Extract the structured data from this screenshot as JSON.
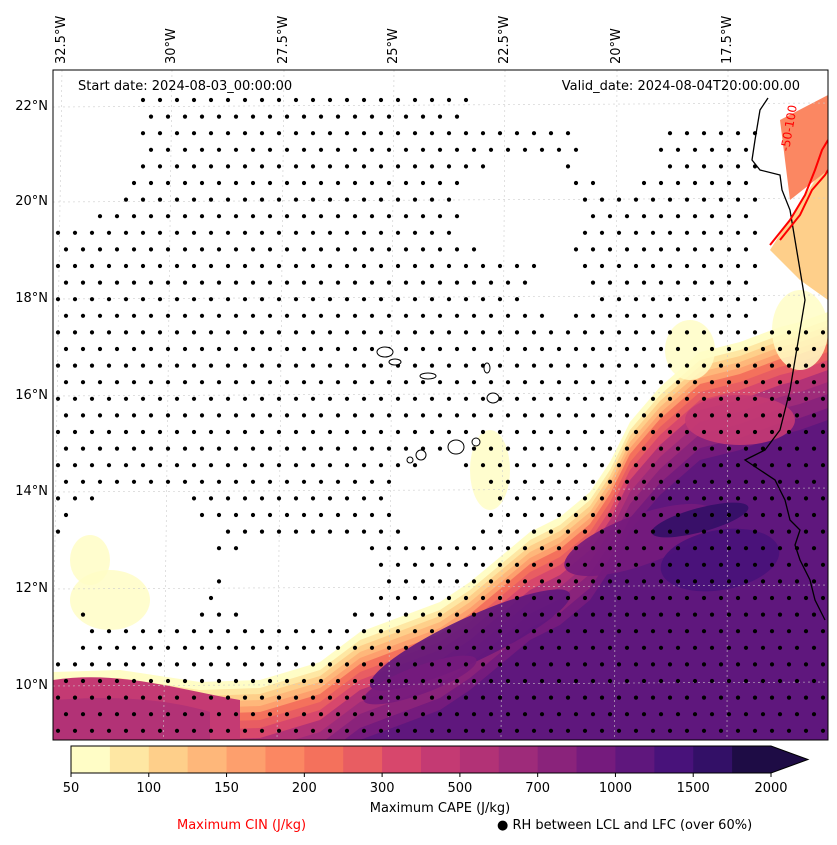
{
  "map": {
    "start_date": "Start date: 2024-08-03_00:00:00",
    "valid_date": "Valid_date: 2024-08-04T20:00:00.00",
    "lon_labels": [
      "32.5°W",
      "30°W",
      "27.5°W",
      "25°W",
      "22.5°W",
      "20°W",
      "17.5°W"
    ],
    "lat_labels": [
      "22°N",
      "20°N",
      "18°N",
      "16°N",
      "14°N",
      "12°N",
      "10°N"
    ],
    "cin_contour_label": "-50-100",
    "cin_contour_color": "#ff0000",
    "coastline_color": "#000000",
    "stipple_color": "#000000"
  },
  "colorbar": {
    "title": "Maximum CAPE (J/kg)",
    "tick_labels": [
      "50",
      "100",
      "150",
      "200",
      "300",
      "500",
      "700",
      "1000",
      "1500",
      "2000"
    ],
    "levels": [
      50,
      75,
      100,
      125,
      150,
      175,
      200,
      250,
      300,
      400,
      500,
      600,
      700,
      800,
      1000,
      1250,
      1500,
      1750,
      2000
    ],
    "colors": [
      "#fffdc6",
      "#fee7a3",
      "#fecf8a",
      "#feb77a",
      "#fd9f6d",
      "#fb8762",
      "#f4715c",
      "#e85d62",
      "#d7476c",
      "#c43a73",
      "#b23276",
      "#9e2b7a",
      "#8a237b",
      "#751b7d",
      "#5f177d",
      "#48127a",
      "#331067",
      "#1e0c45"
    ],
    "extend": "max"
  },
  "legend": {
    "cin_label": "Maximum CIN (J/kg)",
    "cin_color": "#ff0000",
    "rh_symbol": "●",
    "rh_label": "RH between LCL and LFC (over 60%)"
  }
}
